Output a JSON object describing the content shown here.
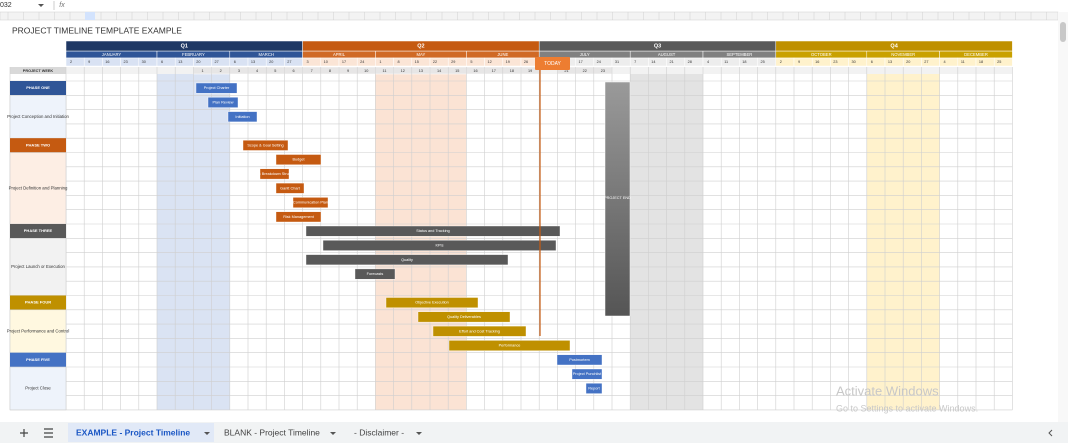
{
  "toolbar": {
    "cell_ref": "032",
    "fx": "fx"
  },
  "title": "PROJECT TIMELINE TEMPLATE EXAMPLE",
  "quarters": [
    "Q1",
    "Q2",
    "Q3",
    "Q4"
  ],
  "months": [
    "JANUARY",
    "FEBRUARY",
    "MARCH",
    "APRIL",
    "MAY",
    "JUNE",
    "JULY",
    "AUGUST",
    "SEPTEMBER",
    "OCTOBER",
    "NOVEMBER",
    "DECEMBER"
  ],
  "days": [
    [
      2,
      9,
      16,
      23,
      30
    ],
    [
      6,
      13,
      20,
      27
    ],
    [
      6,
      13,
      20,
      27
    ],
    [
      3,
      10,
      17,
      24
    ],
    [
      1,
      8,
      15,
      22,
      29
    ],
    [
      5,
      12,
      19,
      26
    ],
    [
      3,
      10,
      17,
      24,
      31
    ],
    [
      7,
      14,
      21,
      28
    ],
    [
      4,
      11,
      18,
      25
    ],
    [
      2,
      9,
      16,
      23,
      30
    ],
    [
      6,
      13,
      20,
      27
    ],
    [
      4,
      11,
      18,
      25
    ]
  ],
  "week_row_label": "PROJECT WEEK",
  "weeks": [
    1,
    2,
    3,
    4,
    5,
    6,
    7,
    8,
    9,
    10,
    11,
    12,
    13,
    14,
    15,
    16,
    17,
    18,
    19,
    21,
    22,
    23
  ],
  "today": "TODAY",
  "phases": [
    {
      "name": "PHASE ONE",
      "description": "Project Conception and Initiation",
      "tasks": [
        "Project Charter",
        "Plan Review",
        "Initiation"
      ]
    },
    {
      "name": "PHASE TWO",
      "description": "Project Definition and Planning",
      "tasks": [
        "Scope & Goal Setting",
        "Budget",
        "Work Breakdown Structure",
        "Gantt Chart",
        "Communication Plan",
        "Risk Management"
      ]
    },
    {
      "name": "PHASE THREE",
      "description": "Project Launch or Execution",
      "tasks": [
        "Status and Tracking",
        "KPIs",
        "Quality",
        "Forecasts"
      ]
    },
    {
      "name": "PHASE FOUR",
      "description": "Project Performance and Control",
      "tasks": [
        "Objective Execution",
        "Quality Deliverables",
        "Effort and Cost Tracking",
        "Performance"
      ]
    },
    {
      "name": "PHASE FIVE",
      "description": "Project Close",
      "tasks": [
        "Postmortem",
        "Project Punchlist",
        "Report"
      ]
    }
  ],
  "project_end": "PROJECT END",
  "tabs": [
    "EXAMPLE - Project Timeline",
    "BLANK - Project Timeline",
    "- Disclaimer -"
  ],
  "watermark": {
    "title": "Activate Windows",
    "subtitle": "Go to Settings to activate Windows."
  }
}
